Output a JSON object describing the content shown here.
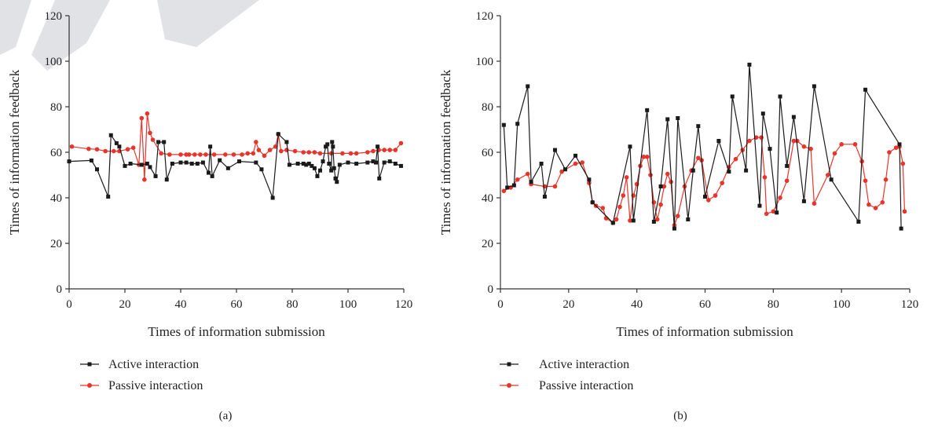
{
  "colors": {
    "active": "#1a1a1a",
    "passive": "#e8352b",
    "axis": "#333333",
    "watermark": "#c9cbd2"
  },
  "chart_data": [
    {
      "type": "line",
      "caption": "(a)",
      "xlabel": "Times of information submission",
      "ylabel": "Times of information feedback",
      "xlim": [
        0,
        120
      ],
      "ylim": [
        0,
        120
      ],
      "xticks": [
        "0",
        "20",
        "40",
        "60",
        "80",
        "100",
        "120"
      ],
      "yticks": [
        "0",
        "20",
        "40",
        "60",
        "80",
        "100",
        "120"
      ],
      "grid": false,
      "legend": "bottom-left",
      "series": [
        {
          "name": "Active interaction",
          "marker": "square",
          "x": [
            0,
            8,
            10,
            14,
            15,
            17,
            18,
            20,
            22,
            26,
            28,
            29,
            31,
            32,
            34,
            35,
            37,
            40,
            42,
            44,
            46,
            48,
            50,
            50.6,
            51.3,
            54,
            57,
            61,
            67,
            69,
            73,
            75,
            78,
            79,
            82,
            84,
            85,
            86,
            87,
            88,
            89,
            90,
            91,
            92,
            92.6,
            93.2,
            94,
            94.3,
            94.6,
            95,
            95.5,
            96,
            97,
            100,
            103,
            107,
            109,
            110,
            110.6,
            111.2,
            113,
            115,
            117,
            119
          ],
          "y": [
            56,
            56.4,
            52.5,
            40.5,
            67.5,
            64,
            62.5,
            54,
            55,
            54.5,
            55,
            53.5,
            49.5,
            64.5,
            64.5,
            48,
            55,
            55.5,
            55.5,
            55,
            55,
            55.5,
            51,
            62.5,
            49.5,
            56.5,
            53,
            56,
            55.5,
            52.5,
            40,
            68,
            64.5,
            54.5,
            55,
            55,
            54.5,
            55,
            54,
            53,
            49.5,
            52,
            56,
            62.5,
            63.5,
            55,
            52,
            64.5,
            62.5,
            53,
            48.5,
            47,
            54.5,
            55.5,
            55,
            55.5,
            56,
            55.5,
            62.5,
            48.5,
            55.5,
            56,
            55,
            54
          ]
        },
        {
          "name": "Passive interaction",
          "marker": "circle",
          "x": [
            1,
            7,
            10,
            13,
            16,
            18,
            21,
            23,
            25,
            26,
            27,
            28,
            29,
            30,
            33,
            36,
            40,
            42,
            43,
            45,
            47,
            49,
            52,
            56,
            59,
            62,
            64,
            66,
            67,
            68,
            70,
            72,
            74,
            75,
            76,
            78,
            81,
            84,
            86,
            88,
            90,
            94,
            98,
            101,
            103,
            107,
            109,
            111,
            113,
            115,
            117,
            119
          ],
          "y": [
            62.5,
            61.5,
            61.3,
            60.5,
            60.5,
            60.5,
            61.3,
            62,
            54.5,
            75,
            48,
            77,
            68.5,
            65.5,
            59.5,
            59,
            59,
            59,
            59,
            59,
            59,
            59,
            59,
            59,
            59,
            59,
            59.5,
            59.5,
            64.5,
            61,
            58.5,
            61,
            62.5,
            68,
            60.5,
            61,
            60.5,
            60,
            60,
            60,
            59.5,
            59.5,
            59.5,
            59.5,
            59.5,
            60,
            60.5,
            61,
            61,
            61,
            61,
            64
          ]
        }
      ]
    },
    {
      "type": "line",
      "caption": "(b)",
      "xlabel": "Times of information submission",
      "ylabel": "Times of information feedback",
      "xlim": [
        0,
        120
      ],
      "ylim": [
        0,
        120
      ],
      "xticks": [
        "0",
        "20",
        "40",
        "60",
        "80",
        "100",
        "120"
      ],
      "yticks": [
        "0",
        "20",
        "40",
        "60",
        "80",
        "100",
        "120"
      ],
      "grid": false,
      "legend": "bottom-left",
      "series": [
        {
          "name": "Active interaction",
          "marker": "square",
          "x": [
            1,
            2,
            4,
            5,
            8,
            9,
            12,
            13,
            16,
            19,
            22,
            26,
            27,
            33,
            38,
            39,
            43,
            45,
            47,
            49,
            51,
            52,
            55,
            56.5,
            58,
            60,
            64,
            67,
            68,
            72,
            73,
            76,
            77,
            79,
            81,
            82,
            84,
            86,
            89,
            92,
            97,
            105,
            107,
            117,
            117.5
          ],
          "y": [
            72,
            44.5,
            45.5,
            72.5,
            89,
            47,
            55,
            40.5,
            61,
            52.5,
            58.5,
            48,
            38,
            29,
            62.5,
            30,
            78.5,
            29.5,
            45,
            74.5,
            26.5,
            75,
            30.5,
            52,
            71.5,
            40.5,
            65,
            51.5,
            84.5,
            52,
            98.5,
            36.5,
            77,
            61.5,
            33.5,
            84.5,
            54,
            75.5,
            38.5,
            89,
            48,
            29.5,
            87.5,
            63.5,
            26.5
          ]
        },
        {
          "name": "Passive interaction",
          "marker": "circle",
          "x": [
            1,
            3,
            5,
            8,
            9,
            13,
            16,
            18,
            22,
            24,
            26,
            27,
            28,
            30,
            31,
            33,
            34,
            35,
            36,
            37,
            38,
            39,
            40,
            41,
            42,
            43,
            44,
            45,
            46,
            47,
            48,
            49,
            50,
            51,
            52,
            54,
            56,
            58,
            59,
            61,
            63,
            65,
            67,
            69,
            71,
            73,
            75,
            76.5,
            77.5,
            78,
            80,
            82,
            84,
            86,
            87,
            89,
            91,
            92,
            96,
            98,
            100,
            104,
            106,
            107,
            108,
            110,
            112,
            113,
            114,
            116,
            117,
            118,
            118.5
          ],
          "y": [
            43,
            44.5,
            48,
            50.5,
            46,
            45,
            45,
            51.5,
            55,
            55.5,
            46.5,
            38,
            36.5,
            35.5,
            31,
            29,
            30.5,
            36,
            41,
            49,
            30,
            41,
            46,
            54,
            58,
            58,
            50,
            38,
            30.5,
            37,
            45,
            50.5,
            47,
            28,
            32,
            45,
            52,
            57.5,
            56.5,
            39,
            41,
            46.5,
            53.5,
            57,
            61,
            65,
            66.5,
            66.5,
            49,
            33,
            34,
            40,
            47.5,
            65,
            65,
            62.5,
            61.5,
            37.5,
            50,
            59.5,
            63.5,
            63.5,
            56,
            47.5,
            37,
            35.5,
            38,
            48,
            60,
            62,
            62.5,
            55,
            34
          ]
        }
      ]
    }
  ]
}
